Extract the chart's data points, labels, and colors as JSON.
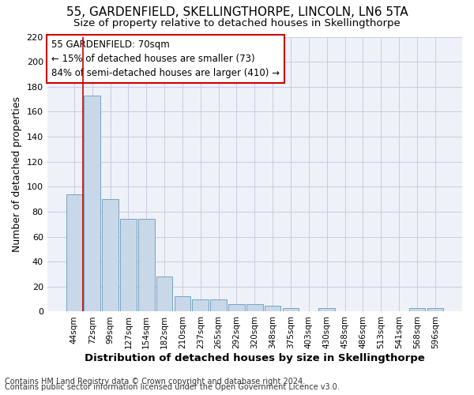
{
  "title1": "55, GARDENFIELD, SKELLINGTHORPE, LINCOLN, LN6 5TA",
  "title2": "Size of property relative to detached houses in Skellingthorpe",
  "xlabel": "Distribution of detached houses by size in Skellingthorpe",
  "ylabel": "Number of detached properties",
  "footer1": "Contains HM Land Registry data © Crown copyright and database right 2024.",
  "footer2": "Contains public sector information licensed under the Open Government Licence v3.0.",
  "bar_labels": [
    "44sqm",
    "72sqm",
    "99sqm",
    "127sqm",
    "154sqm",
    "182sqm",
    "210sqm",
    "237sqm",
    "265sqm",
    "292sqm",
    "320sqm",
    "348sqm",
    "375sqm",
    "403sqm",
    "430sqm",
    "458sqm",
    "486sqm",
    "513sqm",
    "541sqm",
    "568sqm",
    "596sqm"
  ],
  "bar_values": [
    94,
    173,
    90,
    74,
    74,
    28,
    12,
    10,
    10,
    6,
    6,
    5,
    3,
    0,
    3,
    0,
    0,
    0,
    0,
    3,
    3
  ],
  "bar_color": "#c8d8e8",
  "bar_edgecolor": "#6699bb",
  "annotation_text": "55 GARDENFIELD: 70sqm\n← 15% of detached houses are smaller (73)\n84% of semi-detached houses are larger (410) →",
  "annotation_box_color": "#ffffff",
  "annotation_border_color": "#cc0000",
  "vline_color": "#cc0000",
  "vline_x": 0.5,
  "ylim": [
    0,
    220
  ],
  "yticks": [
    0,
    20,
    40,
    60,
    80,
    100,
    120,
    140,
    160,
    180,
    200,
    220
  ],
  "grid_color": "#c8cce0",
  "bg_color": "#eef2f8",
  "title1_fontsize": 11,
  "title2_fontsize": 9.5,
  "xlabel_fontsize": 9.5,
  "ylabel_fontsize": 9,
  "annotation_fontsize": 8.5,
  "footer_fontsize": 7
}
